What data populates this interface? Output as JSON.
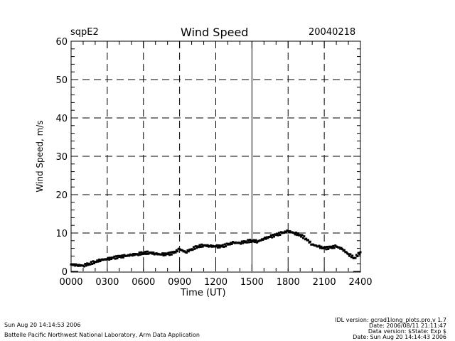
{
  "header": {
    "site": "sqpE2",
    "date": "20040218"
  },
  "footer": {
    "left_line1": "Sun Aug 20 14:14:53 2006",
    "left_line2": "Battelle Pacific Northwest National Laboratory, Arm Data Application",
    "right_lines": [
      "IDL version: gcrad1long_plots.pro,v 1.7",
      "Date: 2006/08/11 21:11:47",
      "Data version: $State: Exp $",
      "Date: Sun Aug 20 14:14:43 2006"
    ]
  },
  "chart_data": {
    "type": "scatter",
    "title": "Wind Speed",
    "xlabel": "Time (UT)",
    "ylabel": "Wind Speed, m/s",
    "xlim": [
      0,
      24
    ],
    "ylim": [
      0,
      60
    ],
    "xticks": [
      0,
      3,
      6,
      9,
      12,
      15,
      18,
      21,
      24
    ],
    "xtick_labels": [
      "0000",
      "0300",
      "0600",
      "0900",
      "1200",
      "1500",
      "1800",
      "2100",
      "2400"
    ],
    "yticks": [
      0,
      10,
      20,
      30,
      40,
      50,
      60
    ],
    "ytick_labels": [
      "0",
      "10",
      "20",
      "30",
      "40",
      "50",
      "60"
    ],
    "grid": "dashed",
    "x": [
      0,
      0.5,
      1,
      1.5,
      2,
      2.5,
      3,
      3.5,
      4,
      4.5,
      5,
      5.5,
      6,
      6.5,
      7,
      7.5,
      8,
      8.5,
      9,
      9.5,
      10,
      10.5,
      11,
      11.5,
      12,
      12.5,
      13,
      13.5,
      14,
      14.5,
      15,
      15.5,
      16,
      16.5,
      17,
      17.5,
      18,
      18.5,
      19,
      19.5,
      20,
      20.5,
      21,
      21.5,
      22,
      22.5,
      23,
      23.5,
      24
    ],
    "y": [
      1.8,
      1.6,
      1.5,
      2.0,
      2.5,
      3.0,
      3.2,
      3.5,
      3.8,
      4.0,
      4.3,
      4.5,
      4.8,
      4.9,
      4.6,
      4.4,
      4.5,
      4.8,
      5.8,
      5.0,
      5.8,
      6.5,
      6.8,
      6.6,
      6.5,
      6.5,
      7.0,
      7.5,
      7.4,
      7.8,
      8.0,
      7.8,
      8.5,
      9.0,
      9.5,
      10.0,
      10.5,
      10.0,
      9.5,
      8.5,
      7.0,
      6.5,
      6.0,
      6.2,
      6.5,
      5.8,
      4.5,
      3.5,
      5.0
    ]
  }
}
